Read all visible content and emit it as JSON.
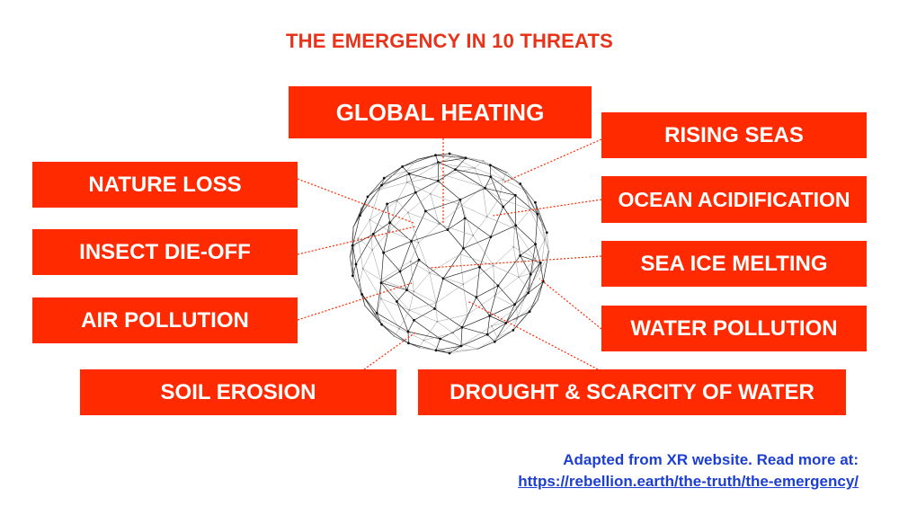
{
  "title": "THE EMERGENCY IN 10 THREATS",
  "threats": {
    "global_heating": "GLOBAL HEATING",
    "rising_seas": "RISING SEAS",
    "ocean_acidification": "OCEAN ACIDIFICATION",
    "sea_ice_melting": "SEA ICE MELTING",
    "water_pollution": "WATER POLLUTION",
    "nature_loss": "NATURE LOSS",
    "insect_die_off": "INSECT DIE-OFF",
    "air_pollution": "AIR POLLUTION",
    "soil_erosion": "SOIL EROSION",
    "drought": "DROUGHT & SCARCITY OF WATER"
  },
  "footer": {
    "line1": "Adapted from XR website. Read more at:",
    "link": "https://rebellion.earth/the-truth/the-emergency/"
  },
  "colors": {
    "box": "#ff2a00",
    "title": "#e8321a",
    "link": "#1d3fd0",
    "connector": "#ff2a00"
  },
  "icons": {
    "globe": "wireframe-sphere-icon"
  }
}
